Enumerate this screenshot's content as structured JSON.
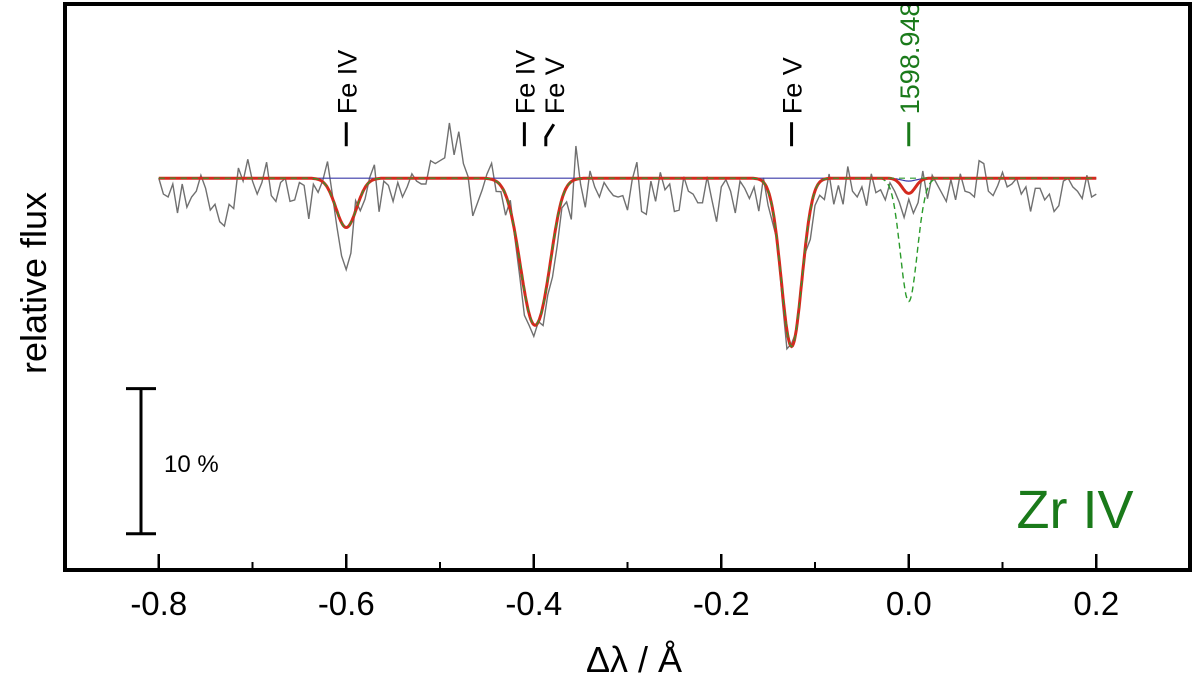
{
  "colors": {
    "observed": "#707070",
    "model": "#d42a1e",
    "model_without": "#2e9b2e",
    "model_enhanced": "#2a9a2a",
    "blue_model": "#3a3aa8",
    "highlight": "#1a7a1a",
    "axis": "#000000"
  },
  "chart_data": {
    "type": "line",
    "title": "",
    "xlabel": "Δλ / Å",
    "ylabel": "relative flux",
    "xlim": [
      -0.9,
      0.3
    ],
    "ylim": [
      0.73,
      1.12
    ],
    "xticks": [
      -0.8,
      -0.6,
      -0.4,
      -0.2,
      0.0,
      0.2
    ],
    "xtick_labels": [
      "-0.8",
      "-0.6",
      "-0.4",
      "-0.2",
      "0.0",
      "0.2"
    ],
    "minor_x_step": 0.1,
    "grid": false,
    "legend": "none",
    "annotation": "Zr IV",
    "scale_bar": {
      "label": "10 %",
      "y_bottom": 0.755,
      "y_top": 0.855
    },
    "line_markers": [
      {
        "label": "Fe IV",
        "x": -0.6,
        "y": 1.022,
        "style": "straight",
        "color": "black"
      },
      {
        "label": "Fe IV",
        "x": -0.41,
        "y": 1.022,
        "style": "straight",
        "color": "black"
      },
      {
        "label": "Fe V",
        "x": -0.385,
        "y": 1.022,
        "style": "bent",
        "color": "black"
      },
      {
        "label": "Fe V",
        "x": -0.125,
        "y": 1.022,
        "style": "straight",
        "color": "black"
      },
      {
        "label": "1598.948",
        "x": 0.0,
        "y": 1.022,
        "style": "straight",
        "color": "green"
      }
    ],
    "continuum": 1.0,
    "observed_x_range": [
      -0.8,
      0.2
    ],
    "observed_step": 0.005,
    "observed_deviation": [
      0.0,
      -0.011,
      -0.013,
      -0.004,
      -0.024,
      -0.004,
      -0.02,
      -0.013,
      -0.009,
      0.002,
      -0.007,
      -0.022,
      -0.018,
      -0.03,
      -0.033,
      -0.018,
      -0.021,
      0.007,
      -0.002,
      0.013,
      -0.002,
      -0.011,
      -0.003,
      0.011,
      -0.012,
      -0.016,
      -0.003,
      0.0,
      -0.016,
      -0.015,
      -0.003,
      -0.005,
      -0.028,
      -0.004,
      -0.009,
      0.001,
      0.018,
      0.003,
      -0.011,
      -0.023,
      -0.029,
      -0.021,
      0.007,
      -0.009,
      -0.008,
      0.003,
      0.01,
      -0.023,
      -0.002,
      -0.005,
      -0.016,
      -0.003,
      -0.013,
      -0.006,
      0.003,
      -0.002,
      -0.004,
      -0.004,
      0.012,
      0.01,
      0.012,
      0.014,
      0.038,
      0.016,
      0.032,
      0.01,
      0.001,
      -0.026,
      -0.017,
      -0.008,
      0.003,
      0.011,
      -0.007,
      -0.004,
      -0.014,
      0.007,
      -0.004,
      -0.01,
      -0.017,
      -0.008,
      -0.008,
      -0.0,
      -0.014,
      -0.011,
      -0.02,
      -0.018,
      -0.006,
      -0.01,
      -0.026,
      0.023,
      -0.004,
      -0.02,
      0.005,
      -0.006,
      -0.013,
      -0.003,
      -0.008,
      -0.012,
      -0.013,
      -0.012,
      -0.022,
      -0.001,
      0.011,
      -0.023,
      -0.025,
      -0.002,
      -0.016,
      0.004,
      -0.008,
      -0.004,
      -0.023,
      -0.022,
      0.001,
      -0.009,
      -0.011,
      -0.017,
      -0.017,
      0.001,
      -0.015,
      -0.03,
      -0.006,
      -0.001,
      -0.009,
      -0.024,
      -0.002,
      -0.007,
      -0.014,
      -0.006,
      -0.022,
      0.003,
      -0.01,
      -0.009,
      0.002,
      -0.007,
      -0.013,
      0.002,
      -0.001,
      0.003,
      -0.005,
      -0.02,
      -0.01,
      -0.009,
      -0.014,
      0.003,
      -0.018,
      -0.005,
      -0.018,
      0.008,
      -0.009,
      -0.013,
      -0.006,
      -0.019,
      0.003,
      -0.01,
      -0.008,
      -0.015,
      -0.003,
      -0.008,
      -0.013,
      -0.019,
      -0.004,
      -0.016,
      -0.013,
      0.006,
      -0.014,
      0.002,
      -0.004,
      -0.01,
      -0.016,
      -0.001,
      -0.015,
      0.003,
      -0.009,
      -0.01,
      -0.013,
      0.012,
      0.01,
      -0.009,
      -0.012,
      -0.005,
      0.004,
      -0.006,
      -0.004,
      0.0,
      -0.011,
      -0.006,
      -0.023,
      -0.007,
      -0.007,
      -0.015,
      -0.011,
      -0.023,
      -0.019,
      -0.002,
      0.0,
      -0.006,
      -0.009,
      -0.014,
      0.002,
      -0.013,
      -0.011
    ],
    "absorption_lines": [
      {
        "center": -0.6,
        "depth": 0.034,
        "sigma": 0.011
      },
      {
        "center": -0.4,
        "depth": 0.098,
        "sigma": 0.0145
      },
      {
        "center": -0.385,
        "depth": 0.012,
        "sigma": 0.009
      },
      {
        "center": -0.125,
        "depth": 0.116,
        "sigma": 0.011
      },
      {
        "center": 0.0,
        "depth": 0.0105,
        "sigma": 0.007
      }
    ],
    "enhanced_line": {
      "center": 0.0,
      "depth": 0.085,
      "sigma": 0.009
    },
    "blue_line": {
      "center": 0.0,
      "depth": 0.002,
      "sigma": 0.008
    }
  }
}
